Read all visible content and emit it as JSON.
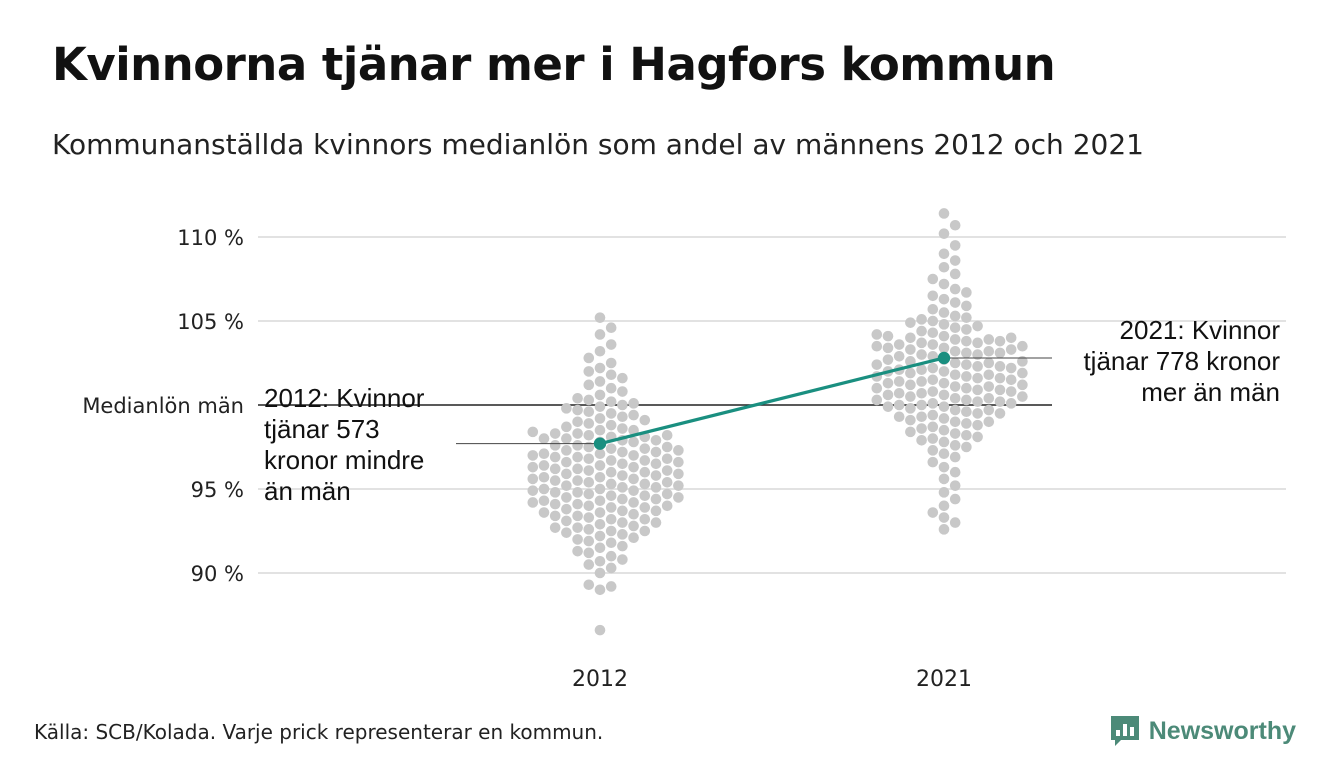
{
  "title": "Kvinnorna tjänar mer i Hagfors kommun",
  "subtitle": "Kommunanställda kvinnors medianlön som andel av männens 2012 och 2021",
  "source": "Källa: SCB/Kolada. Varje prick representerar en kommun.",
  "brand": {
    "name": "Newsworthy",
    "logo_icon": "newsworthy-logo-icon",
    "color": "#4c8a78"
  },
  "colors": {
    "dots": "#c8c8c8",
    "highlight": "#1a8f80",
    "grid": "#e2e2e2",
    "reference": "#222222"
  },
  "chart_data": {
    "type": "scatter",
    "subtype": "beeswarm",
    "categories": [
      "2012",
      "2021"
    ],
    "y_ticks": [
      {
        "value": 90,
        "label": "90 %"
      },
      {
        "value": 95,
        "label": "95 %"
      },
      {
        "value": 105,
        "label": "105 %"
      },
      {
        "value": 110,
        "label": "110 %"
      }
    ],
    "ylim": [
      86.5,
      111.5
    ],
    "grid": true,
    "reference_line": {
      "value": 100,
      "label": "Medianlön män"
    },
    "highlight": {
      "values": [
        97.7,
        102.8
      ],
      "annotations": [
        {
          "category": "2012",
          "lines": [
            "2012: Kvinnor",
            "tjänar 573",
            "kronor mindre",
            "än män"
          ]
        },
        {
          "category": "2021",
          "lines": [
            "2021: Kvinnor",
            "tjänar 778 kronor",
            "mer än män"
          ]
        }
      ]
    },
    "series": [
      {
        "category": "2012",
        "values": [
          86.6,
          89.0,
          89.2,
          89.3,
          90.0,
          90.3,
          90.5,
          90.7,
          90.8,
          91.0,
          91.2,
          91.3,
          91.5,
          91.6,
          91.8,
          91.9,
          92.0,
          92.1,
          92.2,
          92.3,
          92.4,
          92.5,
          92.5,
          92.6,
          92.7,
          92.7,
          92.8,
          92.9,
          93.0,
          93.0,
          93.1,
          93.2,
          93.2,
          93.3,
          93.4,
          93.4,
          93.5,
          93.6,
          93.6,
          93.7,
          93.7,
          93.8,
          93.9,
          93.9,
          94.0,
          94.0,
          94.1,
          94.1,
          94.2,
          94.2,
          94.3,
          94.3,
          94.4,
          94.4,
          94.5,
          94.5,
          94.6,
          94.6,
          94.7,
          94.7,
          94.8,
          94.8,
          94.9,
          94.9,
          95.0,
          95.0,
          95.1,
          95.1,
          95.2,
          95.2,
          95.3,
          95.3,
          95.4,
          95.4,
          95.5,
          95.5,
          95.6,
          95.6,
          95.7,
          95.7,
          95.8,
          95.8,
          95.9,
          95.9,
          96.0,
          96.0,
          96.1,
          96.1,
          96.2,
          96.2,
          96.3,
          96.3,
          96.4,
          96.4,
          96.5,
          96.5,
          96.6,
          96.6,
          96.7,
          96.7,
          96.8,
          96.8,
          96.9,
          96.9,
          97.0,
          97.0,
          97.1,
          97.1,
          97.2,
          97.2,
          97.3,
          97.3,
          97.4,
          97.4,
          97.5,
          97.5,
          97.6,
          97.6,
          97.8,
          97.8,
          97.9,
          97.9,
          98.0,
          98.0,
          98.1,
          98.1,
          98.2,
          98.2,
          98.3,
          98.3,
          98.4,
          98.5,
          98.5,
          98.6,
          98.7,
          98.8,
          98.9,
          99.0,
          99.1,
          99.2,
          99.3,
          99.4,
          99.5,
          99.6,
          99.7,
          99.8,
          99.9,
          100.0,
          100.1,
          100.2,
          100.3,
          100.4,
          100.6,
          100.8,
          101.0,
          101.2,
          101.4,
          101.6,
          101.8,
          102.0,
          102.2,
          102.5,
          102.8,
          103.2,
          103.6,
          104.2,
          104.6,
          105.2
        ]
      },
      {
        "category": "2021",
        "values": [
          92.6,
          93.0,
          93.3,
          93.6,
          94.0,
          94.4,
          94.8,
          95.2,
          95.6,
          96.0,
          96.3,
          96.6,
          96.9,
          97.1,
          97.3,
          97.5,
          97.6,
          97.8,
          97.9,
          98.0,
          98.1,
          98.2,
          98.3,
          98.4,
          98.5,
          98.6,
          98.7,
          98.8,
          98.9,
          99.0,
          99.0,
          99.1,
          99.2,
          99.3,
          99.3,
          99.4,
          99.5,
          99.5,
          99.6,
          99.7,
          99.7,
          99.8,
          99.9,
          99.9,
          100.0,
          100.0,
          100.1,
          100.1,
          100.2,
          100.2,
          100.3,
          100.3,
          100.4,
          100.4,
          100.5,
          100.5,
          100.6,
          100.6,
          100.7,
          100.7,
          100.8,
          100.8,
          100.9,
          100.9,
          101.0,
          101.0,
          101.1,
          101.1,
          101.2,
          101.2,
          101.3,
          101.3,
          101.4,
          101.4,
          101.5,
          101.5,
          101.6,
          101.6,
          101.7,
          101.7,
          101.8,
          101.8,
          101.9,
          101.9,
          102.0,
          102.0,
          102.1,
          102.1,
          102.2,
          102.2,
          102.3,
          102.3,
          102.4,
          102.4,
          102.5,
          102.5,
          102.6,
          102.6,
          102.7,
          102.7,
          102.9,
          102.9,
          103.0,
          103.0,
          103.1,
          103.1,
          103.2,
          103.2,
          103.3,
          103.3,
          103.4,
          103.4,
          103.5,
          103.5,
          103.6,
          103.6,
          103.7,
          103.7,
          103.8,
          103.8,
          103.9,
          103.9,
          104.0,
          104.0,
          104.1,
          104.1,
          104.2,
          104.3,
          104.4,
          104.5,
          104.6,
          104.7,
          104.8,
          104.9,
          105.0,
          105.1,
          105.2,
          105.3,
          105.5,
          105.7,
          105.9,
          106.1,
          106.3,
          106.5,
          106.7,
          106.9,
          107.2,
          107.5,
          107.8,
          108.2,
          108.6,
          109.0,
          109.5,
          110.2,
          110.7,
          111.4
        ]
      }
    ]
  }
}
